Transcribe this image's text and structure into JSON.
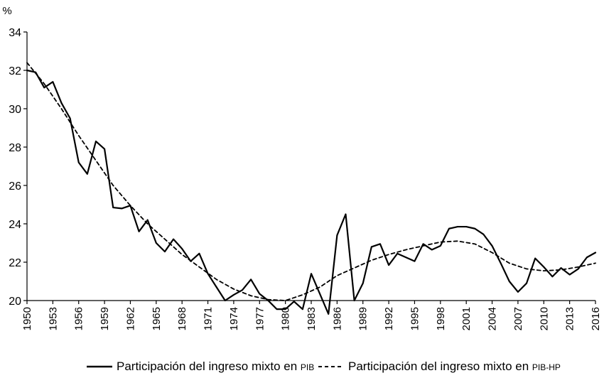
{
  "chart_data": {
    "type": "line",
    "ylabel": "%",
    "ylim": [
      20,
      34
    ],
    "yticks": [
      20,
      22,
      24,
      26,
      28,
      30,
      32,
      34
    ],
    "xlim": [
      1950,
      2016
    ],
    "xticks": [
      "1950",
      "1953",
      "1956",
      "1959",
      "1962",
      "1965",
      "1968",
      "1971",
      "1974",
      "1977",
      "1980",
      "1983",
      "1986",
      "1989",
      "1992",
      "1995",
      "1998",
      "2001",
      "2004",
      "2007",
      "2010",
      "2013",
      "2016"
    ],
    "grid": false,
    "legend_position": "bottom",
    "series": [
      {
        "name": "Participación del ingreso mixto en PIB",
        "style": "solid",
        "x": [
          1950,
          1951,
          1952,
          1953,
          1954,
          1955,
          1956,
          1957,
          1958,
          1959,
          1960,
          1961,
          1962,
          1963,
          1964,
          1965,
          1966,
          1967,
          1968,
          1969,
          1970,
          1971,
          1972,
          1973,
          1974,
          1975,
          1976,
          1977,
          1978,
          1979,
          1980,
          1981,
          1982,
          1983,
          1984,
          1985,
          1986,
          1987,
          1988,
          1989,
          1990,
          1991,
          1992,
          1993,
          1994,
          1995,
          1996,
          1997,
          1998,
          1999,
          2000,
          2001,
          2002,
          2003,
          2004,
          2005,
          2006,
          2007,
          2008,
          2009,
          2010,
          2011,
          2012,
          2013,
          2014,
          2015,
          2016
        ],
        "values": [
          32.0,
          31.9,
          31.1,
          31.4,
          30.3,
          29.5,
          27.2,
          26.6,
          28.3,
          27.9,
          24.85,
          24.8,
          24.95,
          23.6,
          24.2,
          23.0,
          22.55,
          23.2,
          22.7,
          22.05,
          22.45,
          21.4,
          20.7,
          20.0,
          20.3,
          20.55,
          21.1,
          20.35,
          20.0,
          19.55,
          19.55,
          19.95,
          19.55,
          21.4,
          20.35,
          19.3,
          23.4,
          24.5,
          20.0,
          20.9,
          22.8,
          22.95,
          21.85,
          22.45,
          22.25,
          22.05,
          22.95,
          22.65,
          22.85,
          23.75,
          23.85,
          23.85,
          23.75,
          23.45,
          22.85,
          21.95,
          21.0,
          20.45,
          20.9,
          22.2,
          21.75,
          21.25,
          21.7,
          21.35,
          21.65,
          22.25,
          22.5
        ]
      },
      {
        "name": "Participación del ingreso mixto en PIB-HP",
        "style": "dashed",
        "x": [
          1950,
          1952,
          1954,
          1956,
          1958,
          1960,
          1962,
          1964,
          1966,
          1968,
          1970,
          1972,
          1974,
          1976,
          1978,
          1980,
          1982,
          1984,
          1986,
          1988,
          1990,
          1992,
          1994,
          1996,
          1998,
          2000,
          2002,
          2004,
          2006,
          2008,
          2010,
          2012,
          2014,
          2016
        ],
        "values": [
          32.4,
          31.3,
          30.0,
          28.6,
          27.3,
          26.0,
          24.95,
          24.0,
          23.2,
          22.4,
          21.75,
          21.1,
          20.6,
          20.25,
          20.05,
          20.0,
          20.3,
          20.7,
          21.3,
          21.7,
          22.1,
          22.4,
          22.65,
          22.85,
          23.05,
          23.1,
          22.95,
          22.5,
          21.95,
          21.65,
          21.55,
          21.6,
          21.75,
          21.95
        ]
      }
    ]
  },
  "legend": {
    "item1_main": "Participación del ingreso mixto en ",
    "item1_small": "PIB",
    "item2_main": "Participación del ingreso mixto en ",
    "item2_small": "PIB-HP"
  }
}
